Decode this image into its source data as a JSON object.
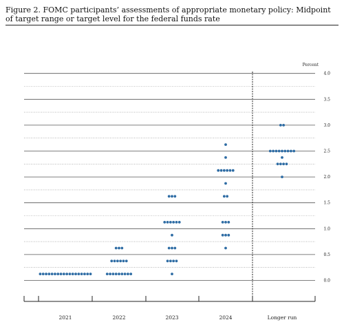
{
  "figure": {
    "title": "Figure 2.  FOMC participants’ assessments of appropriate monetary policy:  Midpoint of target range or target level for the federal funds rate"
  },
  "chart_data": {
    "type": "scatter",
    "ylabel": "Percent",
    "ylim": [
      -0.25,
      4.0
    ],
    "yticks": [
      0.0,
      0.5,
      1.0,
      1.5,
      2.0,
      2.5,
      3.0,
      3.5,
      4.0
    ],
    "ytick_labels": [
      "0.0",
      "0.5",
      "1.0",
      "1.5",
      "2.0",
      "2.5",
      "3.0",
      "3.5",
      "4.0"
    ],
    "categories": [
      "2021",
      "2022",
      "2023",
      "2024",
      "Longer run"
    ],
    "dot_color": "#2e6ca4",
    "dots": [
      {
        "category": "2021",
        "rates": [
          {
            "value": 0.125,
            "count": 18
          }
        ]
      },
      {
        "category": "2022",
        "rates": [
          {
            "value": 0.625,
            "count": 3
          },
          {
            "value": 0.375,
            "count": 6
          },
          {
            "value": 0.125,
            "count": 9
          }
        ]
      },
      {
        "category": "2023",
        "rates": [
          {
            "value": 1.625,
            "count": 3
          },
          {
            "value": 1.125,
            "count": 6
          },
          {
            "value": 0.875,
            "count": 1
          },
          {
            "value": 0.625,
            "count": 3
          },
          {
            "value": 0.375,
            "count": 4
          },
          {
            "value": 0.125,
            "count": 1
          }
        ]
      },
      {
        "category": "2024",
        "rates": [
          {
            "value": 2.625,
            "count": 1
          },
          {
            "value": 2.375,
            "count": 1
          },
          {
            "value": 2.125,
            "count": 6
          },
          {
            "value": 1.875,
            "count": 1
          },
          {
            "value": 1.625,
            "count": 2
          },
          {
            "value": 1.125,
            "count": 3
          },
          {
            "value": 0.875,
            "count": 3
          },
          {
            "value": 0.625,
            "count": 1
          }
        ]
      },
      {
        "category": "Longer run",
        "rates": [
          {
            "value": 3.0,
            "count": 2
          },
          {
            "value": 2.5,
            "count": 9
          },
          {
            "value": 2.375,
            "count": 1
          },
          {
            "value": 2.25,
            "count": 4
          },
          {
            "value": 2.0,
            "count": 1
          }
        ]
      }
    ]
  }
}
